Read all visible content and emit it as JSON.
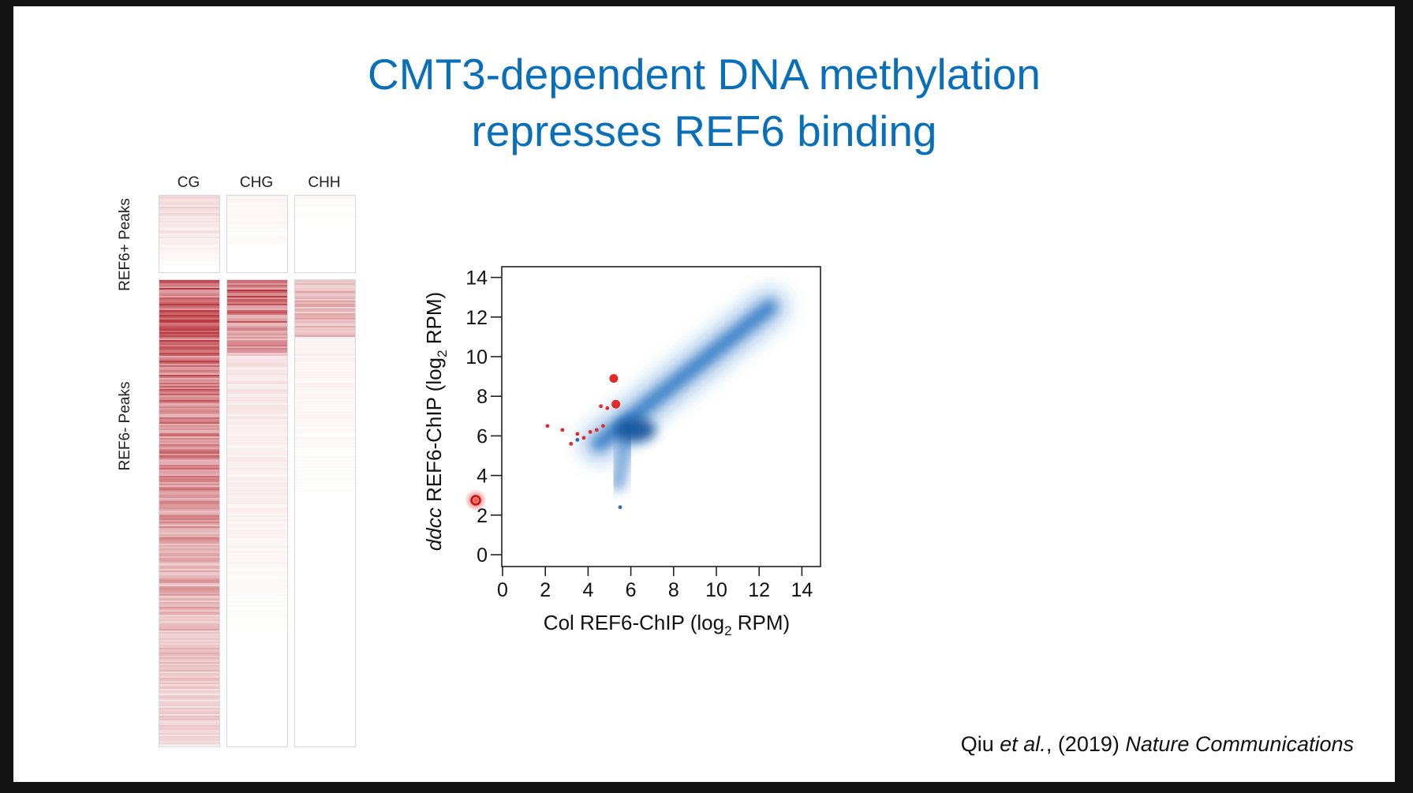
{
  "slide": {
    "title_line1": "CMT3-dependent DNA methylation",
    "title_line2": "represses REF6 binding",
    "citation": {
      "authors_prefix": "Qiu ",
      "authors_etal": "et al.",
      "year": ", (2019) ",
      "journal": "Nature Communications"
    }
  },
  "colors": {
    "title": "#0a6fb9",
    "heatmap_methylation": "#b3232d",
    "scatter_density": "#1f6fbf",
    "scatter_highlight": "#e32a2a"
  },
  "chart_data": [
    {
      "type": "heatmap",
      "columns": [
        "CG",
        "CHG",
        "CHH"
      ],
      "rows": [
        "REF6+ Peaks",
        "REF6- Peaks"
      ],
      "relative_methylation": {
        "REF6+ Peaks": [
          0.08,
          0.02,
          0.01
        ],
        "REF6- Peaks": [
          0.6,
          0.3,
          0.12
        ]
      }
    },
    {
      "type": "scatter",
      "xlabel_prefix": "Col REF6-ChIP (log",
      "xlabel_sub": "2",
      "xlabel_suffix": " RPM)",
      "ylabel_italic": "ddcc",
      "ylabel_prefix": " REF6-ChIP (log",
      "ylabel_sub": "2",
      "ylabel_suffix": " RPM)",
      "xlim": [
        0,
        14
      ],
      "ylim": [
        0,
        14
      ],
      "xticks": [
        0,
        2,
        4,
        6,
        8,
        10,
        12,
        14
      ],
      "yticks": [
        0,
        2,
        4,
        6,
        8,
        10,
        12,
        14
      ],
      "density_main_axis": {
        "x": [
          4.5,
          12.5
        ],
        "y": [
          5.6,
          12.5
        ]
      },
      "density_branch": {
        "x": [
          5.8,
          5.4
        ],
        "y": [
          5.8,
          3.6
        ]
      },
      "outlier_points_blue": [
        {
          "x": 5.5,
          "y": 2.4
        },
        {
          "x": 3.5,
          "y": 5.8
        }
      ],
      "highlighted_points_red": [
        {
          "x": 5.2,
          "y": 8.9
        },
        {
          "x": 5.3,
          "y": 7.6
        },
        {
          "x": 2.1,
          "y": 6.5
        },
        {
          "x": 2.8,
          "y": 6.3
        },
        {
          "x": 3.2,
          "y": 5.6
        },
        {
          "x": 3.5,
          "y": 6.1
        },
        {
          "x": 3.8,
          "y": 5.9
        },
        {
          "x": 4.1,
          "y": 6.2
        },
        {
          "x": 4.4,
          "y": 6.3
        },
        {
          "x": 4.6,
          "y": 7.5
        },
        {
          "x": 4.9,
          "y": 7.4
        },
        {
          "x": 4.7,
          "y": 6.5
        }
      ],
      "legend_marker": {
        "shape": "circle",
        "color": "red"
      }
    }
  ]
}
